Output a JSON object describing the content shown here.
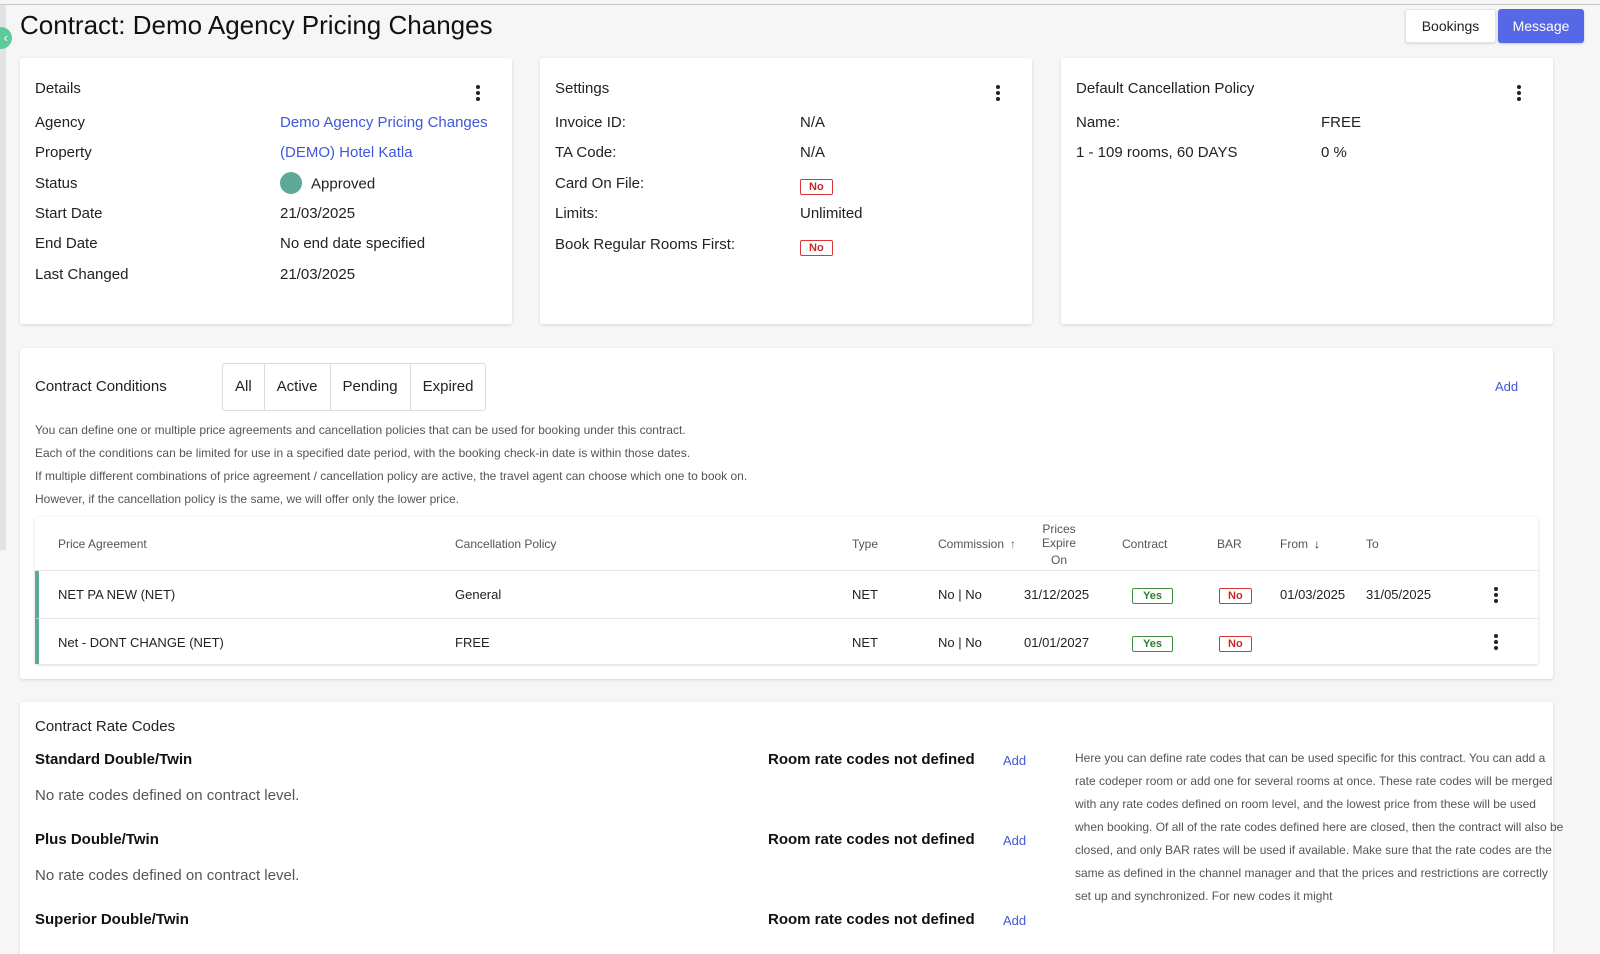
{
  "header": {
    "title": "Contract: Demo Agency Pricing Changes",
    "bookings_label": "Bookings",
    "message_label": "Message"
  },
  "details": {
    "title": "Details",
    "agency_label": "Agency",
    "agency_value": "Demo Agency Pricing Changes",
    "property_label": "Property",
    "property_value": "(DEMO) Hotel Katla",
    "status_label": "Status",
    "status_value": "Approved",
    "start_label": "Start Date",
    "start_value": "21/03/2025",
    "end_label": "End Date",
    "end_value": "No end date specified",
    "changed_label": "Last Changed",
    "changed_value": "21/03/2025"
  },
  "settings": {
    "title": "Settings",
    "invoice_label": "Invoice ID:",
    "invoice_value": "N/A",
    "ta_label": "TA Code:",
    "ta_value": "N/A",
    "card_label": "Card On File:",
    "card_value": "No",
    "limits_label": "Limits:",
    "limits_value": "Unlimited",
    "regular_label": "Book Regular Rooms First:",
    "regular_value": "No"
  },
  "cancellation": {
    "title": "Default Cancellation Policy",
    "name_label": "Name:",
    "name_value": "FREE",
    "rule_label": "1 - 109 rooms, 60 DAYS",
    "rule_value": "0 %"
  },
  "conditions": {
    "title": "Contract Conditions",
    "tabs": [
      "All",
      "Active",
      "Pending",
      "Expired"
    ],
    "add_label": "Add",
    "desc": [
      "You can define one or multiple price agreements and cancellation policies that can be used for booking under this contract.",
      "Each of the conditions can be limited for use in a specified date period, with the booking check-in date is within those dates.",
      "If multiple different combinations of price agreement / cancellation policy are active, the travel agent can choose which one to book on.",
      "However, if the cancellation policy is the same, we will offer only the lower price."
    ],
    "columns": {
      "price_agreement": "Price Agreement",
      "cancellation_policy": "Cancellation Policy",
      "type": "Type",
      "commission": "Commission",
      "prices_expire_1": "Prices Expire",
      "prices_expire_2": "On",
      "contract": "Contract",
      "bar": "BAR",
      "from": "From",
      "to": "To"
    },
    "rows": [
      {
        "price_agreement": "NET PA NEW (NET)",
        "cancellation_policy": "General",
        "type": "NET",
        "commission": "No | No",
        "prices_expire": "31/12/2025",
        "contract": "Yes",
        "bar": "No",
        "from": "01/03/2025",
        "to": "31/05/2025"
      },
      {
        "price_agreement": "Net - DONT CHANGE (NET)",
        "cancellation_policy": "FREE",
        "type": "NET",
        "commission": "No | No",
        "prices_expire": "01/01/2027",
        "contract": "Yes",
        "bar": "No",
        "from": "",
        "to": ""
      }
    ]
  },
  "rate_codes": {
    "title": "Contract Rate Codes",
    "rooms": [
      {
        "name": "Standard Double/Twin",
        "status": "Room rate codes not defined",
        "add": "Add",
        "empty": "No rate codes defined on contract level."
      },
      {
        "name": "Plus Double/Twin",
        "status": "Room rate codes not defined",
        "add": "Add",
        "empty": "No rate codes defined on contract level."
      },
      {
        "name": "Superior Double/Twin",
        "status": "Room rate codes not defined",
        "add": "Add",
        "empty": ""
      }
    ],
    "help_text": "Here you can define rate codes that can be used specific for this contract. You can add a rate codeper room or add one for several rooms at once. These rate codes will be merged with any rate codes defined on room level, and the lowest price from these will be used when booking. Of all of the rate codes defined here are closed, then the contract will also be closed, and only BAR rates will be used if available. Make sure that the rate codes are the same as defined in the channel manager and that the prices and restrictions are correctly set up and synchronized. For new codes it might"
  },
  "colors": {
    "accent": "#5668e8",
    "link": "#3f57d8",
    "status_green": "#5ea898",
    "no_red": "#d93636",
    "yes_green": "#3f8f3f"
  }
}
